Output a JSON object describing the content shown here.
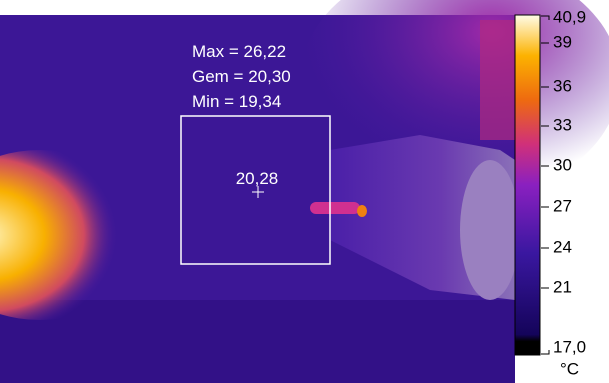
{
  "overlay": {
    "max_label": "Max = 26,22",
    "avg_label": "Gem = 20,30",
    "min_label": "Min = 19,34",
    "center_value": "20,28"
  },
  "scale": {
    "top": "40,9",
    "ticks": [
      "39",
      "36",
      "33",
      "30",
      "27",
      "24",
      "21"
    ],
    "bottom": "17,0",
    "unit": "°C"
  }
}
